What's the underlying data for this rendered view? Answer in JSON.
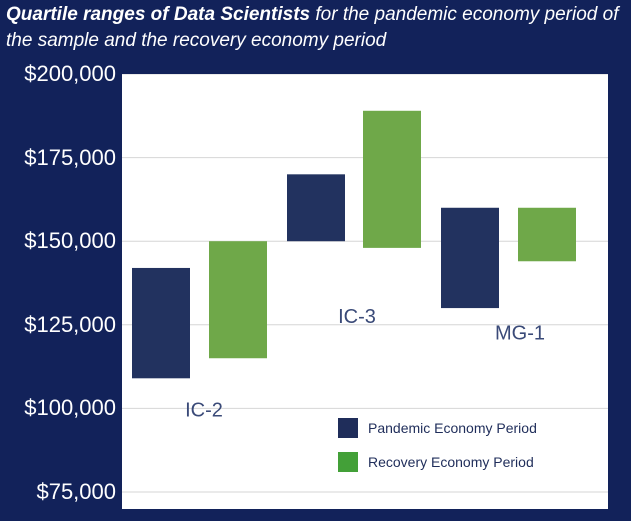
{
  "title": {
    "bold": "Quartile ranges of Data Scientists",
    "rest": " for the pandemic economy period of the sample and the recovery economy period"
  },
  "chart_data": {
    "type": "bar",
    "subtype": "floating-range",
    "title": "Quartile ranges of Data Scientists for the pandemic economy period of the sample and the recovery economy period",
    "categories": [
      "IC-2",
      "IC-3",
      "MG-1"
    ],
    "series": [
      {
        "name": "Pandemic Economy Period",
        "color": "#22325f",
        "ranges": [
          [
            109000,
            142000
          ],
          [
            150000,
            170000
          ],
          [
            130000,
            160000
          ]
        ]
      },
      {
        "name": "Recovery Economy Period",
        "color": "#6fa849",
        "ranges": [
          [
            115000,
            150000
          ],
          [
            148000,
            189000
          ],
          [
            144000,
            160000
          ]
        ]
      }
    ],
    "y_ticks": [
      75000,
      100000,
      125000,
      150000,
      175000,
      200000
    ],
    "y_tick_labels": [
      "$75,000",
      "$100,000",
      "$125,000",
      "$150,000",
      "$175,000",
      "$200,000"
    ],
    "ylim": [
      72000,
      200000
    ],
    "grid": true,
    "legend": "bottom-right"
  },
  "legend": {
    "pandemic": {
      "label": "Pandemic Economy Period",
      "color": "#1f2d5a"
    },
    "recovery": {
      "label": "Recovery Economy Period",
      "color": "#43a038"
    }
  }
}
